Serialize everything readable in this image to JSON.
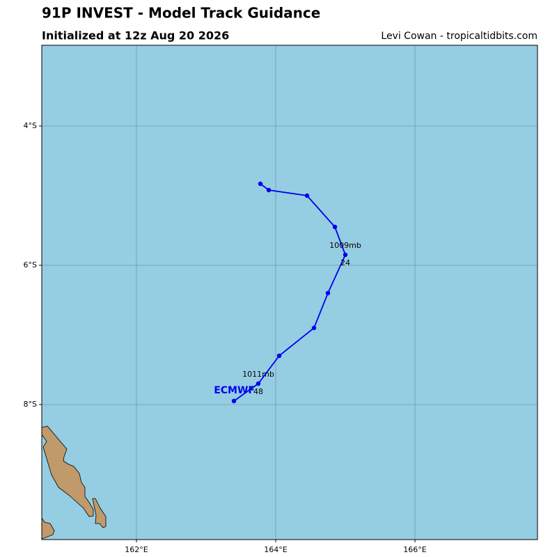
{
  "chart_data": {
    "type": "track",
    "title": "91P INVEST - Model Track Guidance",
    "subtitle": "Initialized at 12z Aug 20 2026",
    "credit": "Levi Cowan - tropicaltidbits.com",
    "xlim": [
      160.64,
      167.76
    ],
    "ylim": [
      -9.94,
      -2.84
    ],
    "xticks": [
      {
        "value": 162,
        "label": "162°E"
      },
      {
        "value": 164,
        "label": "164°E"
      },
      {
        "value": 166,
        "label": "166°E"
      }
    ],
    "yticks": [
      {
        "value": -4,
        "label": "4°S"
      },
      {
        "value": -6,
        "label": "6°S"
      },
      {
        "value": -8,
        "label": "8°S"
      }
    ],
    "grid": true,
    "ocean_color": "#95cde3",
    "land_color": "#c19a6b",
    "series": [
      {
        "name": "ECMWF",
        "color": "#0000ee",
        "x": [
          163.78,
          163.9,
          164.45,
          164.85,
          165.0,
          164.75,
          164.55,
          164.05,
          163.75,
          163.4
        ],
        "values": [
          -4.83,
          -4.92,
          -5.0,
          -5.45,
          -5.85,
          -6.4,
          -6.9,
          -7.3,
          -7.7,
          -7.95
        ],
        "pressure_labels": [
          null,
          null,
          null,
          null,
          "1009mb",
          null,
          null,
          null,
          "1011mb",
          null
        ],
        "hour_labels": [
          null,
          null,
          null,
          null,
          "24",
          null,
          null,
          null,
          "48",
          null
        ]
      }
    ]
  }
}
